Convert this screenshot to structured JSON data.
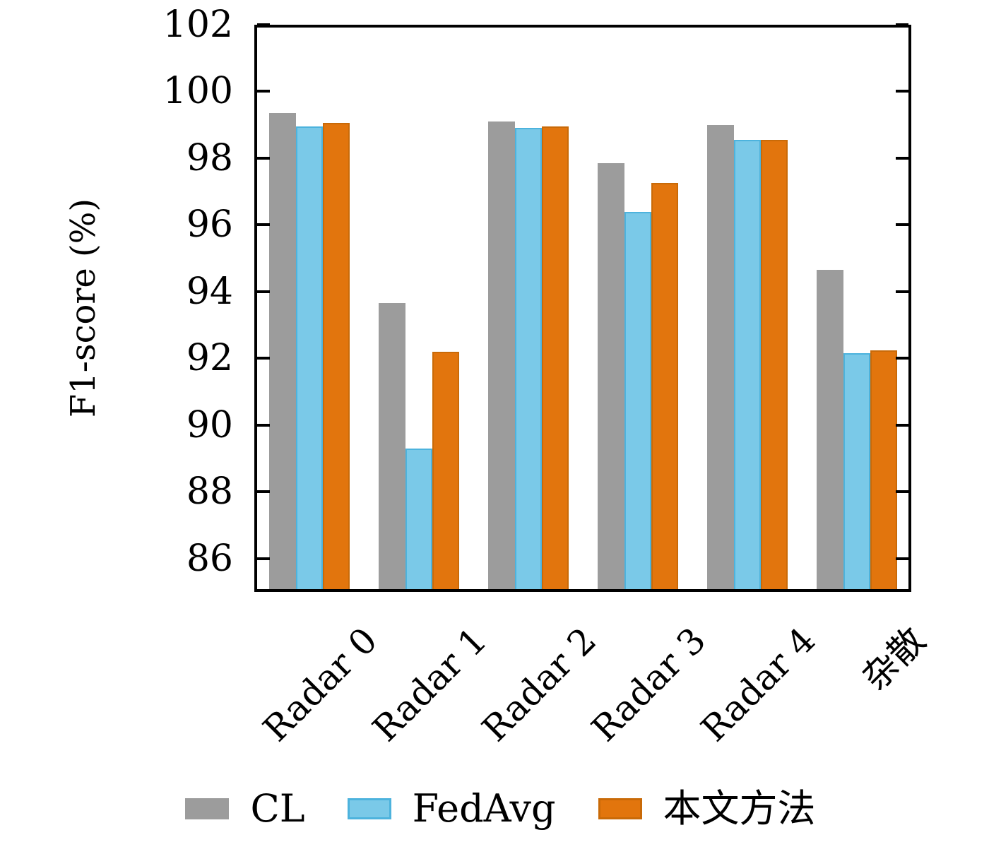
{
  "chart_data": {
    "type": "bar",
    "title": "",
    "xlabel": "",
    "ylabel": "F1-score (%)",
    "categories": [
      "Radar 0",
      "Radar 1",
      "Radar 2",
      "Radar 3",
      "Radar 4",
      "杂散"
    ],
    "series": [
      {
        "name": "CL",
        "color": "#9c9c9c",
        "edge": "#9c9c9c",
        "values": [
          99.35,
          93.65,
          99.1,
          97.85,
          99.0,
          94.65
        ]
      },
      {
        "name": "FedAvg",
        "color": "#7ac9e8",
        "edge": "#4db3dd",
        "values": [
          98.95,
          89.3,
          98.9,
          96.4,
          98.55,
          92.15
        ]
      },
      {
        "name": "本文方法",
        "color": "#e2750d",
        "edge": "#c96a08",
        "values": [
          99.05,
          92.2,
          98.95,
          97.25,
          98.55,
          92.25
        ]
      }
    ],
    "ylim": [
      85,
      102
    ],
    "yticks": [
      86,
      88,
      90,
      92,
      94,
      96,
      98,
      100,
      102
    ],
    "grid": false,
    "legend_position": "bottom"
  }
}
